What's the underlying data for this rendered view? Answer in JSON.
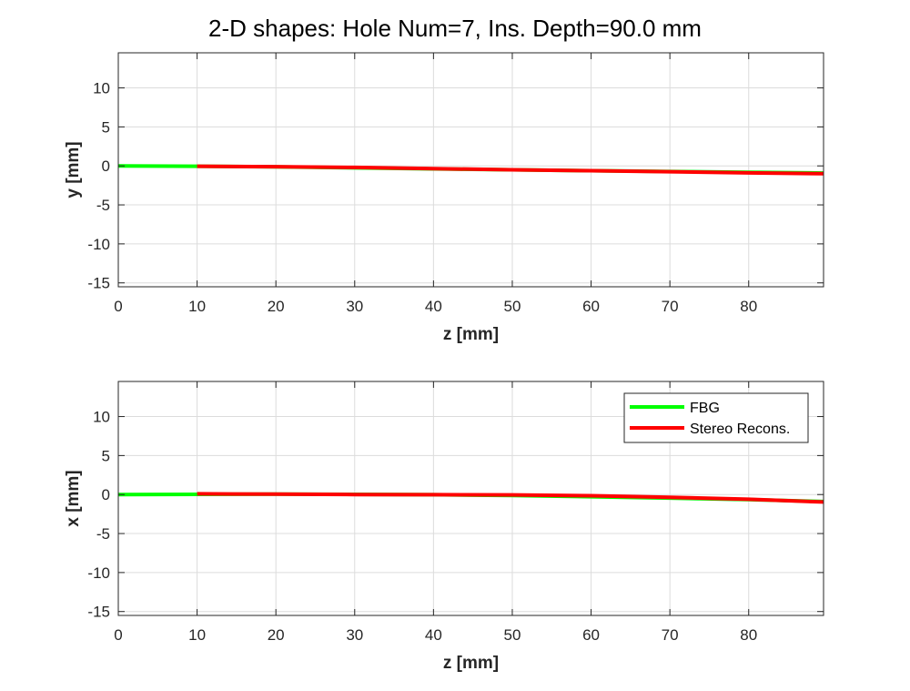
{
  "title": "2-D shapes: Hole Num=7, Ins. Depth=90.0 mm",
  "colors": {
    "fbg": "#00ff00",
    "stereo": "#ff0000",
    "grid": "#dcdcdc",
    "axis": "#262626"
  },
  "chart_data": [
    {
      "type": "line",
      "xlabel": "z [mm]",
      "ylabel": "y [mm]",
      "xlim": [
        0,
        89.5
      ],
      "ylim": [
        -15.5,
        14.5
      ],
      "xticks": [
        0,
        10,
        20,
        30,
        40,
        50,
        60,
        70,
        80
      ],
      "yticks": [
        -15,
        -10,
        -5,
        0,
        5,
        10
      ],
      "grid": true,
      "legend": false,
      "series": [
        {
          "name": "FBG",
          "color": "#00ff00",
          "x": [
            0,
            10,
            20,
            30,
            40,
            50,
            60,
            70,
            80,
            89.5
          ],
          "y": [
            0,
            -0.05,
            -0.12,
            -0.25,
            -0.38,
            -0.5,
            -0.62,
            -0.72,
            -0.82,
            -0.92
          ]
        },
        {
          "name": "Stereo Recons.",
          "color": "#ff0000",
          "x": [
            10,
            20,
            30,
            40,
            50,
            60,
            70,
            80,
            89.5
          ],
          "y": [
            -0.05,
            -0.1,
            -0.2,
            -0.35,
            -0.5,
            -0.62,
            -0.75,
            -0.9,
            -1.0
          ]
        }
      ]
    },
    {
      "type": "line",
      "xlabel": "z [mm]",
      "ylabel": "x [mm]",
      "xlim": [
        0,
        89.5
      ],
      "ylim": [
        -15.5,
        14.5
      ],
      "xticks": [
        0,
        10,
        20,
        30,
        40,
        50,
        60,
        70,
        80
      ],
      "yticks": [
        -15,
        -10,
        -5,
        0,
        5,
        10
      ],
      "grid": true,
      "legend": true,
      "legend_position": "top-right",
      "series": [
        {
          "name": "FBG",
          "color": "#00ff00",
          "x": [
            0,
            10,
            20,
            30,
            40,
            50,
            60,
            70,
            80,
            89.5
          ],
          "y": [
            0,
            0.02,
            0.05,
            0.02,
            -0.02,
            -0.12,
            -0.28,
            -0.45,
            -0.65,
            -0.9
          ]
        },
        {
          "name": "Stereo Recons.",
          "color": "#ff0000",
          "x": [
            10,
            20,
            30,
            40,
            50,
            60,
            70,
            80,
            89.5
          ],
          "y": [
            0.1,
            0.05,
            0.0,
            -0.02,
            -0.05,
            -0.15,
            -0.35,
            -0.6,
            -0.95
          ]
        }
      ]
    }
  ]
}
